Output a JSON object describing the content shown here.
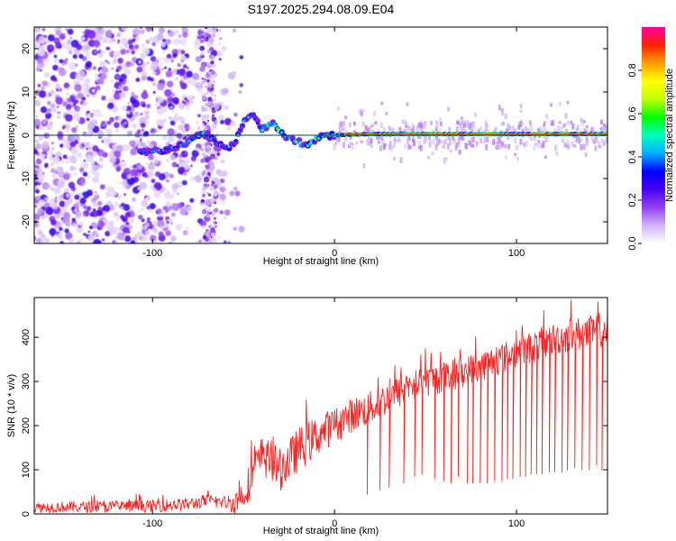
{
  "chart_data": [
    {
      "type": "heatmap",
      "title": "S197.2025.294.08.09.E04",
      "xlabel": "Height of straight line (km)",
      "ylabel": "Frequency (Hz)",
      "xlim": [
        -165,
        150
      ],
      "ylim": [
        -25,
        25
      ],
      "xticks": [
        -100,
        0,
        100
      ],
      "yticks": [
        -20,
        -10,
        0,
        10,
        20
      ],
      "colorbar": {
        "label": "Normalized spectral amplitude",
        "ticks": [
          "0.0",
          "0.2",
          "0.4",
          "0.6",
          "0.8"
        ],
        "tick_values": [
          0,
          0.2,
          0.4,
          0.6,
          0.8
        ],
        "range": [
          0,
          1
        ],
        "colors": [
          "#ffffff",
          "#d0b4f5",
          "#9340f0",
          "#4a00f0",
          "#0000ff",
          "#00b0ff",
          "#00ffc0",
          "#00ff00",
          "#c0ff00",
          "#ffff00",
          "#ffa000",
          "#ff2000",
          "#ff00a0"
        ]
      },
      "ridge": [
        [
          -105,
          -4.0
        ],
        [
          -95,
          -3.5
        ],
        [
          -85,
          -2.5
        ],
        [
          -78,
          -1.0
        ],
        [
          -72,
          0.5
        ],
        [
          -60,
          -3.0
        ],
        [
          -55,
          -2.0
        ],
        [
          -50,
          3.0
        ],
        [
          -45,
          5.0
        ],
        [
          -40,
          1.0
        ],
        [
          -35,
          3.0
        ],
        [
          -30,
          1.0
        ],
        [
          -25,
          -1.0
        ],
        [
          -20,
          -1.5
        ],
        [
          -15,
          -2.5
        ],
        [
          -10,
          -1.0
        ],
        [
          -5,
          0.0
        ],
        [
          0,
          0.0
        ],
        [
          20,
          0.3
        ],
        [
          150,
          0.3
        ]
      ]
    },
    {
      "type": "line",
      "xlabel": "Height of straight line (km)",
      "ylabel": "SNR (10 * v/v)",
      "xlim": [
        -165,
        150
      ],
      "ylim": [
        0,
        490
      ],
      "xticks": [
        -100,
        0,
        100
      ],
      "yticks": [
        0,
        100,
        200,
        300,
        400
      ],
      "series": [
        {
          "name": "SNR",
          "color": "#ff2020",
          "trend": [
            [
              -165,
              15
            ],
            [
              -130,
              16
            ],
            [
              -100,
              18
            ],
            [
              -80,
              22
            ],
            [
              -70,
              30
            ],
            [
              -65,
              28
            ],
            [
              -55,
              25
            ],
            [
              -50,
              45
            ],
            [
              -45,
              90
            ],
            [
              -40,
              130
            ],
            [
              -35,
              120
            ],
            [
              -30,
              100
            ],
            [
              -25,
              120
            ],
            [
              -20,
              145
            ],
            [
              -15,
              160
            ],
            [
              -10,
              175
            ],
            [
              -5,
              190
            ],
            [
              0,
              200
            ],
            [
              10,
              225
            ],
            [
              20,
              240
            ],
            [
              30,
              265
            ],
            [
              40,
              285
            ],
            [
              50,
              300
            ],
            [
              60,
              310
            ],
            [
              70,
              320
            ],
            [
              80,
              335
            ],
            [
              90,
              350
            ],
            [
              100,
              365
            ],
            [
              110,
              380
            ],
            [
              120,
              395
            ],
            [
              130,
              405
            ],
            [
              140,
              410
            ],
            [
              150,
              420
            ]
          ],
          "noise_amplitude": [
            [
              -165,
              12
            ],
            [
              -60,
              15
            ],
            [
              -45,
              45
            ],
            [
              -20,
              50
            ],
            [
              0,
              40
            ],
            [
              50,
              35
            ],
            [
              100,
              35
            ],
            [
              150,
              40
            ]
          ],
          "dropouts": [
            [
              18,
              45
            ],
            [
              25,
              55
            ],
            [
              30,
              60
            ],
            [
              38,
              70
            ],
            [
              44,
              85
            ],
            [
              48,
              90
            ],
            [
              55,
              80
            ],
            [
              60,
              75
            ],
            [
              64,
              70
            ],
            [
              68,
              85
            ],
            [
              73,
              70
            ],
            [
              76,
              70
            ],
            [
              80,
              70
            ],
            [
              84,
              70
            ],
            [
              88,
              75
            ],
            [
              92,
              75
            ],
            [
              95,
              80
            ],
            [
              98,
              80
            ],
            [
              102,
              85
            ],
            [
              105,
              85
            ],
            [
              108,
              90
            ],
            [
              111,
              90
            ],
            [
              114,
              90
            ],
            [
              118,
              95
            ],
            [
              121,
              95
            ],
            [
              125,
              95
            ],
            [
              128,
              100
            ],
            [
              132,
              105
            ],
            [
              136,
              100
            ],
            [
              140,
              100
            ],
            [
              144,
              110
            ],
            [
              147,
              100
            ]
          ]
        }
      ]
    }
  ]
}
